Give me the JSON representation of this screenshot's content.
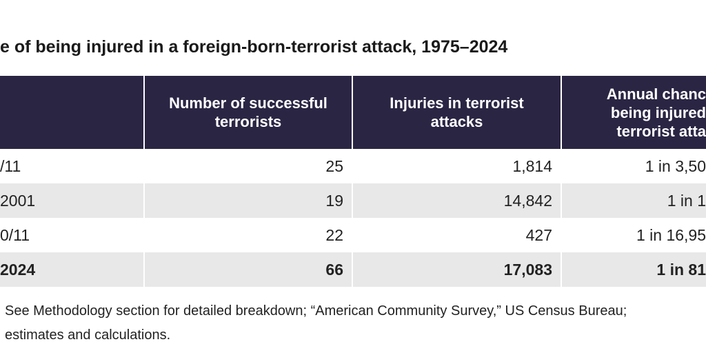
{
  "title": "e of being injured in a foreign-born-terrorist attack, 1975–2024",
  "table": {
    "header": [
      [],
      [
        "Number of successful",
        "terrorists"
      ],
      [
        "Injuries in terrorist",
        "attacks"
      ],
      [
        "Annual chanc",
        "being injured",
        "terrorist atta"
      ]
    ],
    "rows": [
      [
        "/11",
        "25",
        "1,814",
        "1 in 3,50"
      ],
      [
        "2001",
        "19",
        "14,842",
        "1 in 1"
      ],
      [
        "0/11",
        "22",
        "427",
        "1 in 16,95"
      ],
      [
        "2024",
        "66",
        "17,083",
        "1 in 81"
      ]
    ]
  },
  "footer": [
    "See Methodology section for detailed breakdown; “American Community Survey,” US Census Bureau;",
    "estimates and calculations."
  ]
}
